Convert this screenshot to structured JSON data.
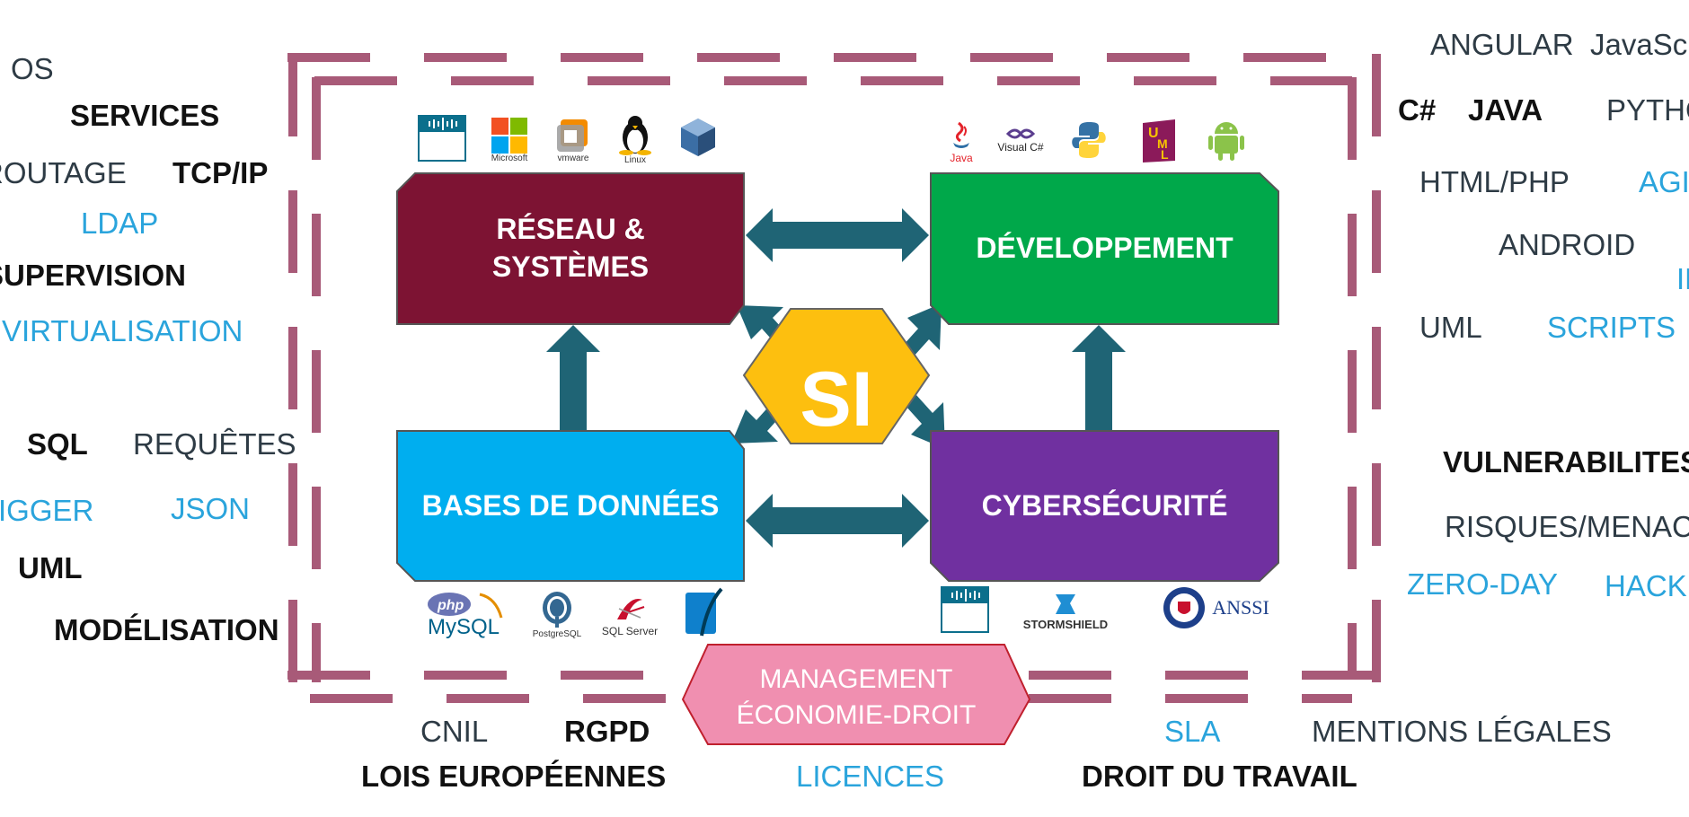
{
  "center": {
    "label": "SI"
  },
  "boxes": {
    "reseau": {
      "label": "RÉSEAU &\nSYSTÈMES",
      "color": "#7d1333"
    },
    "dev": {
      "label": "DÉVELOPPEMENT",
      "color": "#00a84a"
    },
    "bdd": {
      "label": "BASES DE DONNÉES",
      "color": "#00aeef"
    },
    "cyber": {
      "label": "CYBERSÉCURITÉ",
      "color": "#7030a0"
    }
  },
  "management": {
    "line1": "MANAGEMENT",
    "line2": "ÉCONOMIE-DROIT",
    "color": "#f08fb0"
  },
  "colors": {
    "frame": "#a85a78",
    "arrow": "#1f6475",
    "si": "#fdbf0f"
  },
  "logos": {
    "reseau": [
      "cisco-networking-academy",
      "microsoft",
      "vmware",
      "linux",
      "virtualbox"
    ],
    "dev": [
      "java",
      "visual-csharp",
      "python",
      "uml",
      "android"
    ],
    "bdd": [
      "php-mysql",
      "postgresql",
      "sql-server",
      "sqlite"
    ],
    "cyber": [
      "cisco-networking-academy",
      "stormshield",
      "anssi"
    ]
  },
  "logo_text": {
    "cisco": "CISCO",
    "cisco_sub": "Networking Academy",
    "microsoft": "Microsoft",
    "vmware": "vmware",
    "linux": "Linux",
    "java": "Java",
    "visualc": "Visual C#",
    "php": "php",
    "mysql": "MySQL",
    "postgres": "PostgreSQL",
    "sqlserver": "SQL Server",
    "stormshield": "STORMSHIELD",
    "anssi": "ANSSI"
  },
  "keywords": {
    "left": {
      "os": "OS",
      "services": "SERVICES",
      "routage": "ROUTAGE",
      "tcpip": "TCP/IP",
      "ldap": "LDAP",
      "supervision": "SUPERVISION",
      "virtualisation": "VIRTUALISATION",
      "sql": "SQL",
      "requetes": "REQUÊTES",
      "trigger": "TRIGGER",
      "json": "JSON",
      "uml": "UML",
      "modelisation": "MODÉLISATION"
    },
    "right": {
      "angular": "ANGULAR",
      "javascript": "JavaScript",
      "csharp": "C#",
      "java": "JAVA",
      "python": "PYTHON",
      "htmlphp": "HTML/PHP",
      "agile": "AGILE",
      "android": "ANDROID",
      "ihm": "IHM",
      "uml": "UML",
      "scripts": "SCRIPTS",
      "vulnerabilites": "VULNERABILITES",
      "risques": "RISQUES/MENACES",
      "zeroday": "ZERO-DAY",
      "hacker": "HACKER"
    },
    "bottom": {
      "cnil": "CNIL",
      "rgpd": "RGPD",
      "lois": "LOIS EUROPÉENNES",
      "licences": "LICENCES",
      "sla": "SLA",
      "mentions": "MENTIONS LÉGALES",
      "droit": "DROIT DU TRAVAIL"
    }
  }
}
